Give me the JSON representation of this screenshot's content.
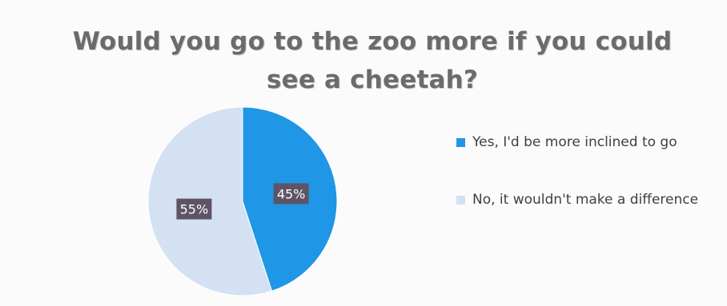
{
  "chart_data": {
    "type": "pie",
    "title": "Would you go to the zoo more if you could see a cheetah?",
    "slices": [
      {
        "label": "Yes, I'd be more inclined to go",
        "value": 45,
        "display": "45%",
        "color": "#1f96e6"
      },
      {
        "label": "No, it wouldn't make a difference",
        "value": 55,
        "display": "55%",
        "color": "#d3e1f3"
      }
    ],
    "legend_position": "right"
  }
}
